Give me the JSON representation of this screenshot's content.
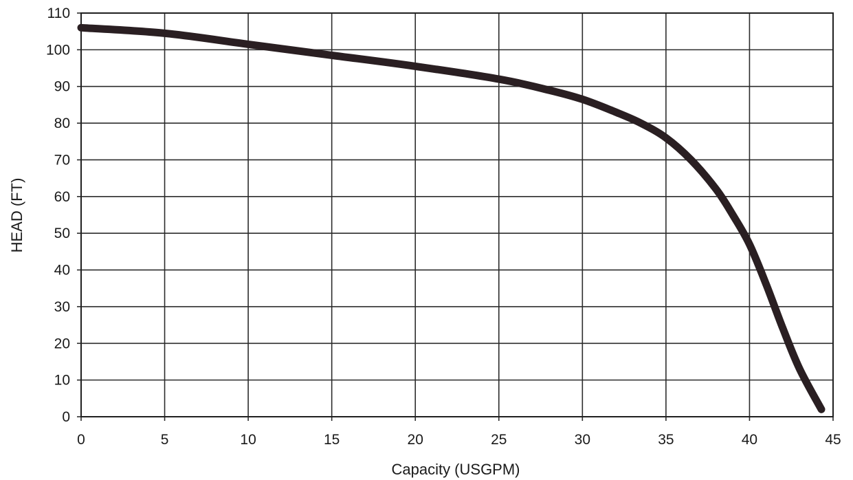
{
  "chart_data": {
    "type": "line",
    "title": "",
    "xlabel": "Capacity (USGPM)",
    "ylabel": "HEAD (FT)",
    "xlim": [
      0,
      45
    ],
    "ylim": [
      0,
      110
    ],
    "xticks": [
      "0",
      "5",
      "10",
      "15",
      "20",
      "25",
      "30",
      "35",
      "40",
      "45"
    ],
    "yticks": [
      "0",
      "10",
      "20",
      "30",
      "40",
      "50",
      "60",
      "70",
      "80",
      "90",
      "100",
      "110"
    ],
    "grid": true,
    "legend": "none",
    "series": [
      {
        "color": "#2a1f22",
        "x": [
          0,
          5,
          10,
          15,
          20,
          25,
          28,
          30,
          32,
          33.5,
          35,
          36.5,
          38,
          39,
          40,
          41,
          42,
          43,
          44.3
        ],
        "y": [
          106,
          104.5,
          101.5,
          98.5,
          95.5,
          92,
          89,
          86.5,
          83,
          80,
          76,
          70,
          62,
          55,
          47,
          36,
          24,
          13,
          2
        ]
      }
    ]
  }
}
